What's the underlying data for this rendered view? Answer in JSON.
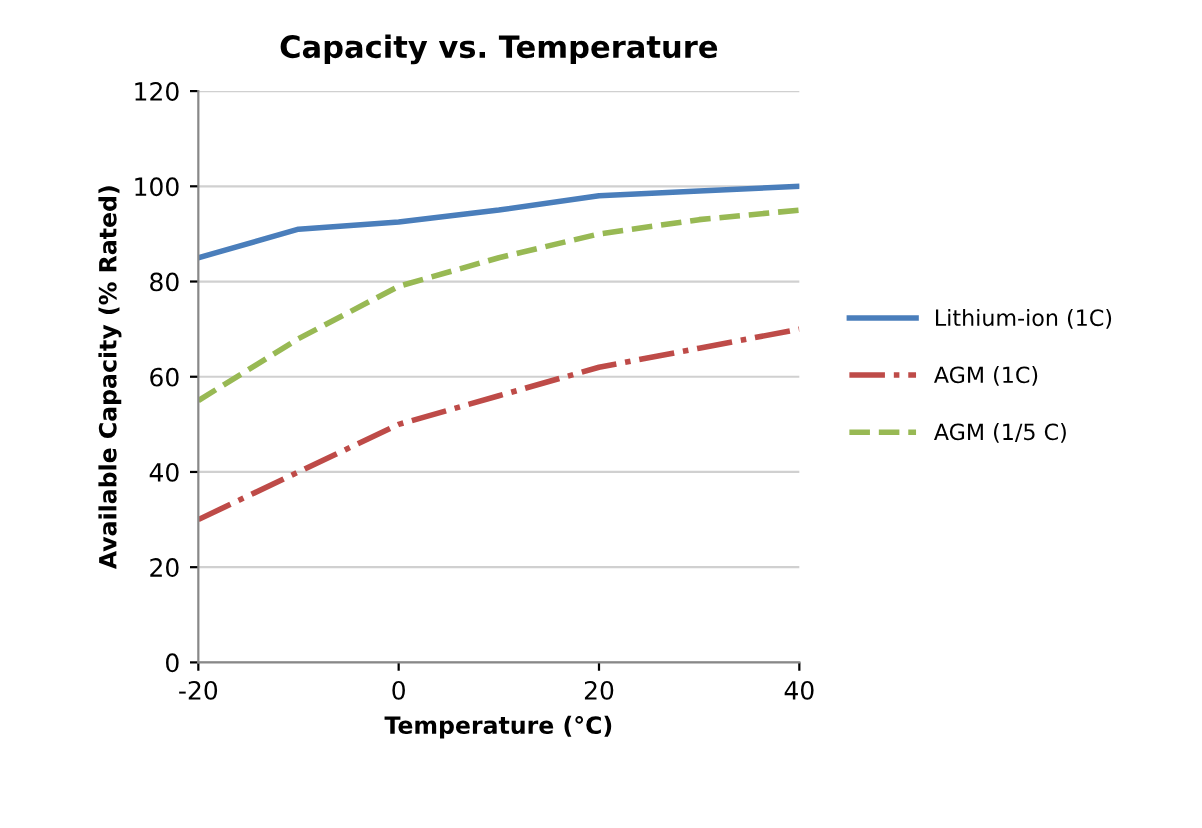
{
  "chart_data": {
    "type": "line",
    "title": "Capacity vs. Temperature",
    "xlabel": "Temperature (°C)",
    "ylabel": "Available Capacity (% Rated)",
    "x": [
      -20,
      -10,
      0,
      10,
      20,
      30,
      40
    ],
    "series": [
      {
        "name": "Lithium-ion (1C)",
        "color": "#4a7ebb",
        "line_style": "solid",
        "values": [
          85,
          91,
          92.5,
          95,
          98,
          99,
          100
        ]
      },
      {
        "name": "AGM (1C)",
        "color": "#be4b48",
        "line_style": "dashdot",
        "values": [
          30,
          40,
          50,
          56,
          62,
          66,
          70
        ]
      },
      {
        "name": "AGM (1/5 C)",
        "color": "#98b954",
        "line_style": "dashed",
        "values": [
          55,
          68,
          79,
          85,
          90,
          93,
          95
        ]
      }
    ],
    "xlim": [
      -20,
      40
    ],
    "xticks": [
      -20,
      0,
      20,
      40
    ],
    "ylim": [
      0,
      120
    ],
    "yticks": [
      0,
      20,
      40,
      60,
      80,
      100,
      120
    ],
    "grid": "y",
    "legend": "right",
    "marker": "none"
  }
}
